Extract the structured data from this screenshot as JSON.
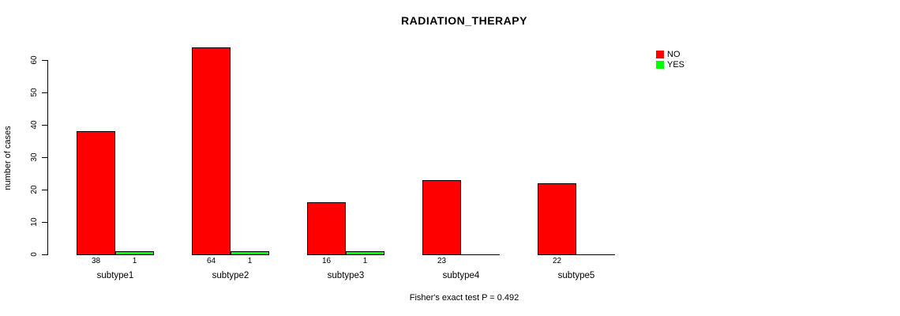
{
  "title": "RADIATION_THERAPY",
  "footer": "Fisher's exact test P = 0.492",
  "y_axis": {
    "label": "number of cases",
    "ticks": [
      0,
      10,
      20,
      30,
      40,
      50,
      60
    ]
  },
  "legend": [
    {
      "label": "NO",
      "color": "#FF0000"
    },
    {
      "label": "YES",
      "color": "#00FF00"
    }
  ],
  "chart_data": {
    "type": "bar",
    "title": "RADIATION_THERAPY",
    "xlabel": "",
    "ylabel": "number of cases",
    "categories": [
      "subtype1",
      "subtype2",
      "subtype3",
      "subtype4",
      "subtype5"
    ],
    "series": [
      {
        "name": "NO",
        "color": "#FF0000",
        "values": [
          38,
          64,
          16,
          23,
          22
        ]
      },
      {
        "name": "YES",
        "color": "#00FF00",
        "values": [
          1,
          1,
          1,
          0,
          0
        ]
      }
    ],
    "bar_value_labels": [
      [
        "38",
        "64",
        "16",
        "23",
        "22"
      ],
      [
        "1",
        "1",
        "1",
        "",
        ""
      ]
    ],
    "yticks": [
      0,
      10,
      20,
      30,
      40,
      50,
      60
    ],
    "ylim": [
      0,
      64
    ],
    "grid": false,
    "legend_position": "top-right",
    "annotation": "Fisher's exact test P = 0.492"
  }
}
